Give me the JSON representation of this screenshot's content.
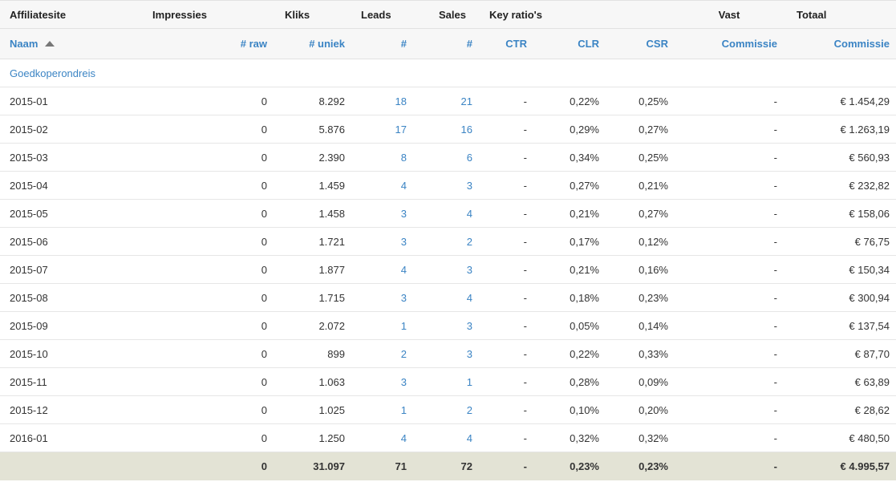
{
  "headers": {
    "affiliatesite": "Affiliatesite",
    "impressies": "Impressies",
    "kliks": "Kliks",
    "leads": "Leads",
    "sales": "Sales",
    "key_ratios": "Key ratio's",
    "vast": "Vast",
    "totaal": "Totaal"
  },
  "columns": {
    "naam": "Naam",
    "raw": "# raw",
    "uniek": "# uniek",
    "leads_count": "#",
    "sales_count": "#",
    "ctr": "CTR",
    "clr": "CLR",
    "csr": "CSR",
    "vast_commissie": "Commissie",
    "totaal_commissie": "Commissie"
  },
  "sort": {
    "column": "naam",
    "direction": "ascending"
  },
  "section": "Goedkoperondreis",
  "rows": [
    {
      "naam": "2015-01",
      "raw": "0",
      "uniek": "8.292",
      "leads": "18",
      "sales": "21",
      "ctr": "-",
      "clr": "0,22%",
      "csr": "0,25%",
      "vast": "-",
      "commissie": "€ 1.454,29"
    },
    {
      "naam": "2015-02",
      "raw": "0",
      "uniek": "5.876",
      "leads": "17",
      "sales": "16",
      "ctr": "-",
      "clr": "0,29%",
      "csr": "0,27%",
      "vast": "-",
      "commissie": "€ 1.263,19"
    },
    {
      "naam": "2015-03",
      "raw": "0",
      "uniek": "2.390",
      "leads": "8",
      "sales": "6",
      "ctr": "-",
      "clr": "0,34%",
      "csr": "0,25%",
      "vast": "-",
      "commissie": "€ 560,93"
    },
    {
      "naam": "2015-04",
      "raw": "0",
      "uniek": "1.459",
      "leads": "4",
      "sales": "3",
      "ctr": "-",
      "clr": "0,27%",
      "csr": "0,21%",
      "vast": "-",
      "commissie": "€ 232,82"
    },
    {
      "naam": "2015-05",
      "raw": "0",
      "uniek": "1.458",
      "leads": "3",
      "sales": "4",
      "ctr": "-",
      "clr": "0,21%",
      "csr": "0,27%",
      "vast": "-",
      "commissie": "€ 158,06"
    },
    {
      "naam": "2015-06",
      "raw": "0",
      "uniek": "1.721",
      "leads": "3",
      "sales": "2",
      "ctr": "-",
      "clr": "0,17%",
      "csr": "0,12%",
      "vast": "-",
      "commissie": "€ 76,75"
    },
    {
      "naam": "2015-07",
      "raw": "0",
      "uniek": "1.877",
      "leads": "4",
      "sales": "3",
      "ctr": "-",
      "clr": "0,21%",
      "csr": "0,16%",
      "vast": "-",
      "commissie": "€ 150,34"
    },
    {
      "naam": "2015-08",
      "raw": "0",
      "uniek": "1.715",
      "leads": "3",
      "sales": "4",
      "ctr": "-",
      "clr": "0,18%",
      "csr": "0,23%",
      "vast": "-",
      "commissie": "€ 300,94"
    },
    {
      "naam": "2015-09",
      "raw": "0",
      "uniek": "2.072",
      "leads": "1",
      "sales": "3",
      "ctr": "-",
      "clr": "0,05%",
      "csr": "0,14%",
      "vast": "-",
      "commissie": "€ 137,54"
    },
    {
      "naam": "2015-10",
      "raw": "0",
      "uniek": "899",
      "leads": "2",
      "sales": "3",
      "ctr": "-",
      "clr": "0,22%",
      "csr": "0,33%",
      "vast": "-",
      "commissie": "€ 87,70"
    },
    {
      "naam": "2015-11",
      "raw": "0",
      "uniek": "1.063",
      "leads": "3",
      "sales": "1",
      "ctr": "-",
      "clr": "0,28%",
      "csr": "0,09%",
      "vast": "-",
      "commissie": "€ 63,89"
    },
    {
      "naam": "2015-12",
      "raw": "0",
      "uniek": "1.025",
      "leads": "1",
      "sales": "2",
      "ctr": "-",
      "clr": "0,10%",
      "csr": "0,20%",
      "vast": "-",
      "commissie": "€ 28,62"
    },
    {
      "naam": "2016-01",
      "raw": "0",
      "uniek": "1.250",
      "leads": "4",
      "sales": "4",
      "ctr": "-",
      "clr": "0,32%",
      "csr": "0,32%",
      "vast": "-",
      "commissie": "€ 480,50"
    }
  ],
  "totals": {
    "naam": "",
    "raw": "0",
    "uniek": "31.097",
    "leads": "71",
    "sales": "72",
    "ctr": "-",
    "clr": "0,23%",
    "csr": "0,23%",
    "vast": "-",
    "commissie": "€ 4.995,57"
  },
  "colors": {
    "link": "#3b84c4",
    "header_bg": "#f7f7f7",
    "total_bg": "#e3e3d5",
    "border": "#e6e6e6"
  }
}
